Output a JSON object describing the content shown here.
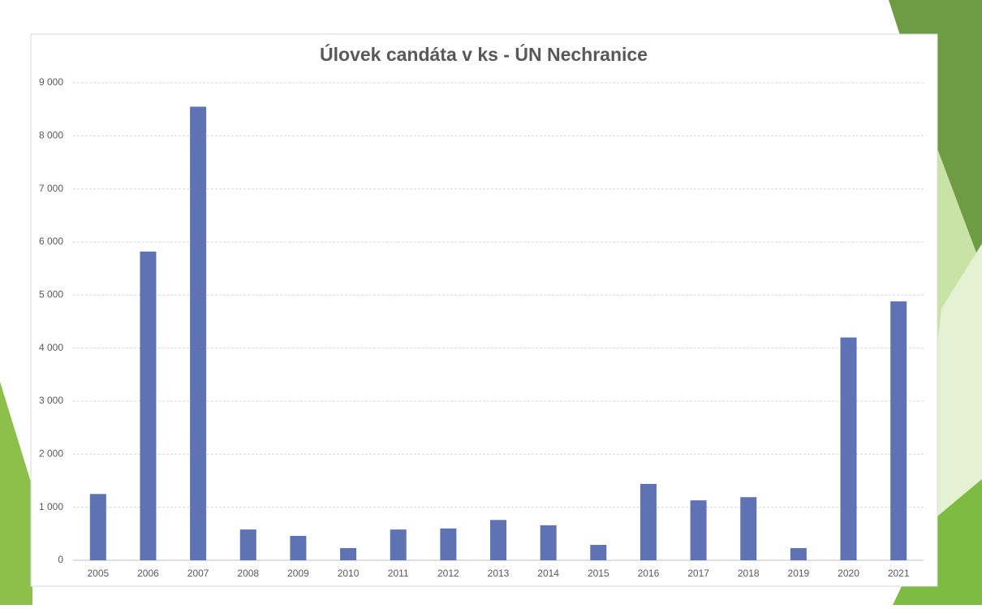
{
  "chart_data": {
    "type": "bar",
    "title": "Úlovek candáta v ks - ÚN Nechranice",
    "categories": [
      "2005",
      "2006",
      "2007",
      "2008",
      "2009",
      "2010",
      "2011",
      "2012",
      "2013",
      "2014",
      "2015",
      "2016",
      "2017",
      "2018",
      "2019",
      "2020",
      "2021"
    ],
    "values": [
      1250,
      5820,
      8550,
      580,
      460,
      230,
      580,
      600,
      760,
      660,
      290,
      1440,
      1130,
      1190,
      230,
      4200,
      4880
    ],
    "color": "#5f72b3",
    "ylim": [
      0,
      9000
    ],
    "yticks": [
      0,
      {
        "value": 1000,
        "label": "1 000"
      },
      {
        "value": 2000,
        "label": "2 000"
      },
      {
        "value": 3000,
        "label": "3 000"
      },
      {
        "value": 4000,
        "label": "4 000"
      },
      {
        "value": 5000,
        "label": "5 000"
      },
      {
        "value": 6000,
        "label": "6 000"
      },
      {
        "value": 7000,
        "label": "7 000"
      },
      {
        "value": 8000,
        "label": "8 000"
      },
      {
        "value": 9000,
        "label": "9 000"
      }
    ],
    "grid": true
  }
}
